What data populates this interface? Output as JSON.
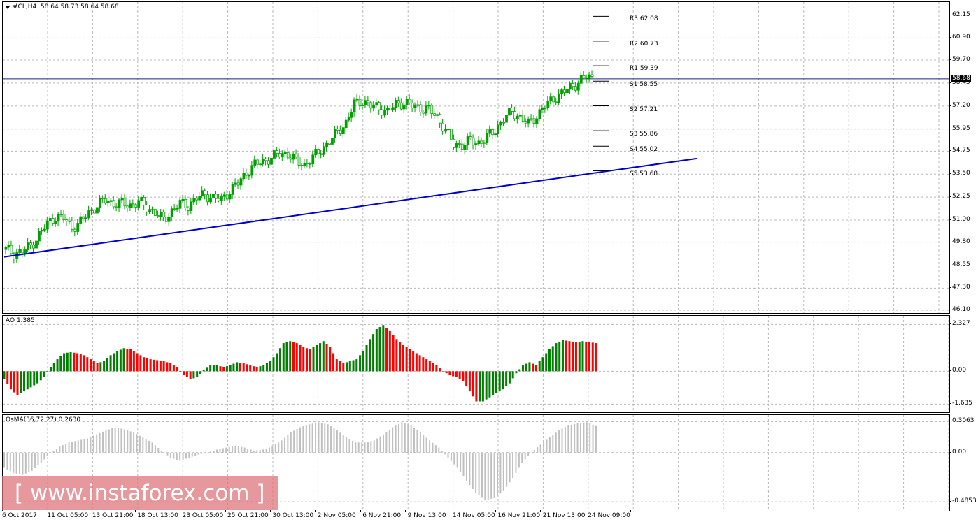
{
  "price_pane": {
    "label": "#CL,H4  58.64 58.73 58.64 58.68",
    "axis_ticks": [
      "62.15",
      "60.90",
      "59.70",
      "58.45",
      "57.20",
      "55.95",
      "54.75",
      "53.50",
      "52.25",
      "51.00",
      "49.80",
      "48.55",
      "47.30",
      "46.10"
    ],
    "current_price": "58.68",
    "pivots": [
      {
        "label": "R3 62.08",
        "value": 62.08
      },
      {
        "label": "R2 60.73",
        "value": 60.73
      },
      {
        "label": "R1 59.39",
        "value": 59.39
      },
      {
        "label": "S1 58.55",
        "value": 58.55
      },
      {
        "label": "S2 57.21",
        "value": 57.21
      },
      {
        "label": "S3 55.86",
        "value": 55.86
      },
      {
        "label": "S4 55.02",
        "value": 55.02
      },
      {
        "label": "S5 53.68",
        "value": 53.68
      }
    ],
    "trendline": {
      "start_price": 49.0,
      "end_price": 54.35
    },
    "ylim": [
      46.1,
      62.55
    ],
    "colors": {
      "bull": "#00a000",
      "bear": "#00a000",
      "trend": "#0000cc",
      "hline": "#1a237e"
    }
  },
  "ao_pane": {
    "label": "AO 1.385",
    "axis_ticks": [
      "2.327",
      "0.00",
      "-1.635"
    ],
    "ylim": [
      -1.9,
      2.55
    ],
    "colors": {
      "up": "#008000",
      "down": "#ff0000"
    }
  },
  "osma_pane": {
    "label": "OsMA(36,72,27) 0.2630",
    "axis_ticks": [
      "0.3063",
      "0.00",
      "-0.4853"
    ],
    "ylim": [
      -0.54,
      0.33
    ],
    "colors": {
      "bar": "#c0c0c0"
    }
  },
  "time_axis": {
    "labels": [
      "6 Oct 2017",
      "11 Oct 05:00",
      "13 Oct 21:00",
      "18 Oct 13:00",
      "23 Oct 05:00",
      "25 Oct 21:00",
      "30 Oct 13:00",
      "2 Nov 05:00",
      "6 Nov 21:00",
      "9 Nov 13:00",
      "14 Nov 05:00",
      "16 Nov 21:00",
      "21 Nov 13:00",
      "24 Nov 09:00"
    ]
  },
  "watermark": {
    "text": "[ www.instaforex.com ]"
  },
  "chart_data": [
    {
      "type": "line",
      "title": "#CL,H4",
      "series": [
        {
          "name": "#CL,H4",
          "values": [
            49.4,
            49.2,
            49.3,
            49.6,
            50.2,
            50.8,
            51.2,
            51.1,
            50.6,
            50.9,
            51.4,
            51.8,
            52.1,
            51.9,
            51.9,
            51.8,
            52.0,
            51.7,
            51.4,
            51.0,
            51.5,
            51.9,
            51.8,
            52.2,
            52.4,
            52.2,
            52.1,
            52.6,
            53.0,
            53.6,
            54.0,
            54.2,
            54.4,
            54.6,
            54.6,
            54.2,
            54.0,
            54.4,
            54.8,
            55.3,
            55.8,
            56.3,
            57.3,
            57.5,
            57.2,
            57.1,
            56.9,
            57.3,
            57.4,
            57.2,
            57.1,
            57.0,
            56.6,
            55.9,
            55.1,
            55.1,
            55.3,
            55.2,
            55.5,
            55.9,
            56.5,
            56.9,
            56.6,
            56.2,
            56.7,
            57.2,
            57.6,
            57.9,
            58.2,
            58.5,
            58.8,
            58.68
          ]
        }
      ],
      "categories_note_free": true,
      "ylim": [
        46.1,
        62.55
      ]
    },
    {
      "type": "bar",
      "title": "AO 1.385",
      "series": [
        {
          "name": "AO",
          "values": [
            -0.4,
            -0.9,
            -1.2,
            -1.0,
            -0.8,
            -0.6,
            -0.3,
            0.2,
            0.6,
            0.9,
            0.95,
            0.9,
            0.8,
            0.6,
            0.4,
            0.5,
            0.8,
            1.0,
            1.15,
            1.1,
            0.9,
            0.7,
            0.6,
            0.55,
            0.5,
            0.4,
            0.2,
            -0.2,
            -0.4,
            -0.3,
            0.05,
            0.3,
            0.3,
            0.2,
            0.3,
            0.45,
            0.4,
            0.3,
            0.2,
            0.3,
            0.5,
            0.9,
            1.4,
            1.5,
            1.4,
            1.2,
            1.1,
            1.3,
            1.5,
            1.2,
            0.6,
            0.4,
            0.5,
            0.6,
            1.0,
            1.6,
            2.1,
            2.3,
            2.0,
            1.6,
            1.3,
            1.1,
            0.9,
            0.7,
            0.5,
            0.3,
            0.0,
            -0.2,
            -0.3,
            -0.5,
            -1.0,
            -1.5,
            -1.5,
            -1.3,
            -1.1,
            -0.9,
            -0.6,
            -0.1,
            0.3,
            0.45,
            0.3,
            0.7,
            1.1,
            1.4,
            1.55,
            1.5,
            1.45,
            1.5,
            1.45,
            1.4
          ]
        }
      ],
      "ylim": [
        -1.9,
        2.55
      ]
    },
    {
      "type": "bar",
      "title": "OsMA(36,72,27) 0.2630",
      "series": [
        {
          "name": "OsMA",
          "values": [
            -0.15,
            -0.2,
            -0.22,
            -0.18,
            -0.1,
            0.0,
            0.06,
            0.1,
            0.12,
            0.14,
            0.18,
            0.22,
            0.25,
            0.23,
            0.2,
            0.15,
            0.1,
            0.02,
            -0.05,
            -0.08,
            -0.05,
            -0.02,
            0.0,
            0.03,
            0.05,
            0.07,
            0.05,
            0.02,
            0.03,
            0.06,
            0.12,
            0.2,
            0.25,
            0.28,
            0.3,
            0.28,
            0.22,
            0.15,
            0.1,
            0.1,
            0.12,
            0.18,
            0.25,
            0.3,
            0.27,
            0.2,
            0.12,
            0.05,
            -0.05,
            -0.15,
            -0.28,
            -0.4,
            -0.47,
            -0.45,
            -0.38,
            -0.25,
            -0.1,
            0.0,
            0.08,
            0.15,
            0.22,
            0.27,
            0.29,
            0.3,
            0.263
          ]
        }
      ],
      "ylim": [
        -0.54,
        0.33
      ]
    }
  ]
}
